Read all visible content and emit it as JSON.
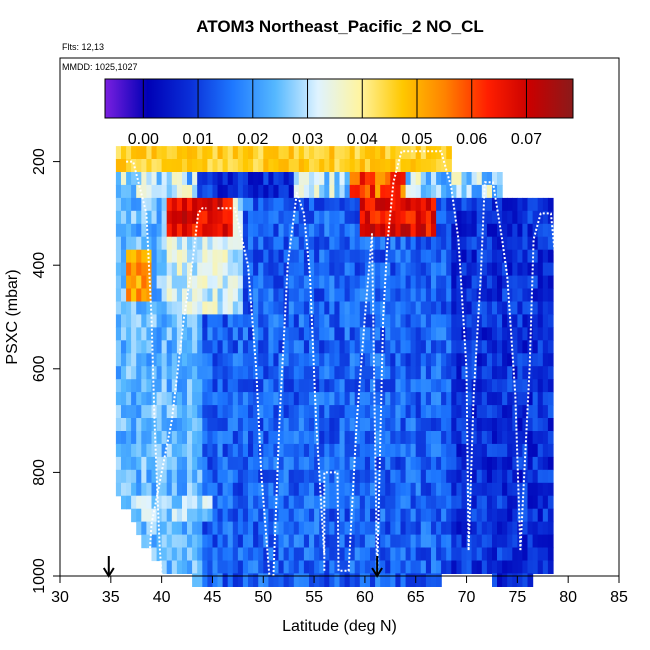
{
  "title": "ATOM3 Northeast_Pacific_2 NO_CL",
  "flts": "Flts: 12,13",
  "mmdd": "MMDD: 1025,1027",
  "chart_data": {
    "type": "heatmap",
    "title": "ATOM3 Northeast_Pacific_2 NO_CL",
    "xlabel": "Latitude (deg N)",
    "ylabel": "PSXC (mbar)",
    "xlim": [
      30,
      85
    ],
    "ylim": [
      1000,
      0
    ],
    "xticks": [
      30,
      35,
      40,
      45,
      50,
      55,
      60,
      65,
      70,
      75,
      80,
      85
    ],
    "yticks": [
      200,
      400,
      600,
      800,
      1000
    ],
    "colorbar": {
      "range": [
        -0.007,
        0.0785
      ],
      "ticks": [
        0.0,
        0.01,
        0.02,
        0.03,
        0.04,
        0.05,
        0.06,
        0.07
      ],
      "tick_labels": [
        "0.00",
        "0.01",
        "0.02",
        "0.03",
        "0.04",
        "0.05",
        "0.06",
        "0.07"
      ],
      "stops": [
        "#7a1fe0",
        "#0000b5",
        "#0a2fd8",
        "#1e78ff",
        "#55b8ff",
        "#dff3ff",
        "#fff4a0",
        "#ffc800",
        "#ff8200",
        "#ff1e00",
        "#c80000",
        "#8b1a1a"
      ]
    },
    "markers": [
      34.8,
      61.2
    ],
    "columns": [
      {
        "lat": 35.5,
        "pmax": 830
      },
      {
        "lat": 36.5,
        "pmax": 860
      },
      {
        "lat": 37.5,
        "pmax": 900
      },
      {
        "lat": 38.5,
        "pmax": 930
      },
      {
        "lat": 39.5,
        "pmax": 960
      },
      {
        "lat": 40.5,
        "pmax": 990
      },
      {
        "lat": 45,
        "pmax": 1000
      },
      {
        "lat": 55,
        "pmax": 1000
      },
      {
        "lat": 65,
        "pmax": 1000
      },
      {
        "lat": 70,
        "pmax": 990
      },
      {
        "lat": 75,
        "pmax": 1000
      },
      {
        "lat": 78.5,
        "pmax": 990
      }
    ],
    "upper_band": {
      "p_top": 170,
      "p_bottom": 215,
      "lat_start": 35.5,
      "lat_end": 68
    },
    "tropopause_band": {
      "p_top": 215,
      "p_bottom": 265,
      "lat_start": 35.5,
      "lat_end": 73
    },
    "series_profiles": [
      {
        "name": "profile",
        "lat": [
          36.5,
          37.2,
          38.5,
          39.0,
          39.3,
          39.6,
          39.8,
          40.0
        ],
        "p": [
          200,
          200,
          300,
          500,
          700,
          850,
          940,
          1000
        ]
      },
      {
        "name": "profile",
        "lat": [
          38.7,
          39.0,
          41.0,
          42.2,
          43.0,
          43.6,
          44.0,
          44.4
        ],
        "p": [
          1000,
          900,
          700,
          500,
          400,
          300,
          290,
          290
        ]
      },
      {
        "name": "profile",
        "lat": [
          45.5,
          47.2,
          48.5,
          49.3,
          49.8,
          50.2,
          50.6
        ],
        "p": [
          290,
          290,
          400,
          600,
          800,
          900,
          1000
        ]
      },
      {
        "name": "profile",
        "lat": [
          51.0,
          51.6,
          52.4,
          53.3,
          54.0,
          54.6,
          55.2,
          56.0
        ],
        "p": [
          1000,
          700,
          400,
          260,
          300,
          420,
          700,
          960
        ]
      },
      {
        "name": "profile",
        "lat": [
          56.0,
          56.0,
          57.3,
          57.4,
          58.5
        ],
        "p": [
          990,
          800,
          800,
          990,
          990
        ]
      },
      {
        "name": "profile",
        "lat": [
          58.4,
          59.2,
          60.0,
          60.7,
          61.2
        ],
        "p": [
          990,
          700,
          500,
          340,
          1000
        ]
      },
      {
        "name": "profile",
        "lat": [
          61.2,
          61.8,
          62.2,
          62.8,
          63.6,
          65.0,
          67.5,
          68.5,
          69.2,
          70.0,
          70.2
        ],
        "p": [
          1000,
          500,
          360,
          240,
          180,
          180,
          180,
          250,
          350,
          600,
          950
        ]
      },
      {
        "name": "profile",
        "lat": [
          70.2,
          70.7,
          71.4,
          71.8,
          72.6,
          73.5,
          74.0,
          74.8,
          75.3
        ],
        "p": [
          950,
          650,
          420,
          240,
          240,
          350,
          420,
          650,
          950
        ]
      },
      {
        "name": "profile",
        "lat": [
          75.3,
          76.2,
          76.6,
          77.3,
          78.3,
          79.3,
          80.0
        ],
        "p": [
          950,
          600,
          350,
          300,
          300,
          500,
          350
        ]
      }
    ]
  }
}
